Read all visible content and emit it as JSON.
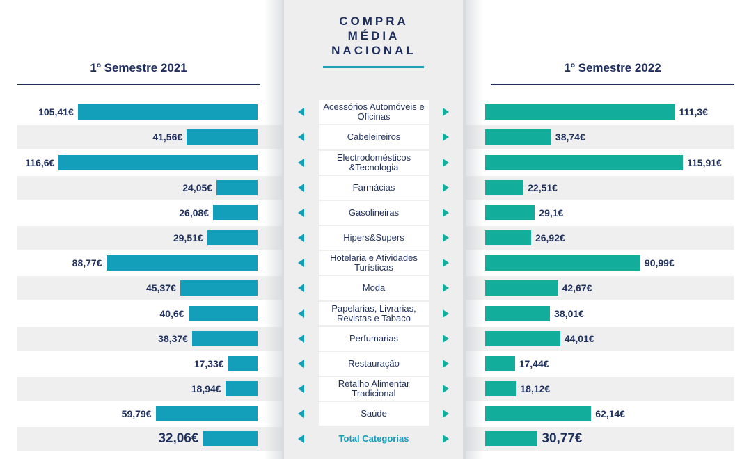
{
  "header": {
    "title_lines": [
      "COMPRA",
      "MÉDIA",
      "NACIONAL"
    ],
    "left_label": "1º Semestre 2021",
    "right_label": "1º Semestre 2022"
  },
  "colors": {
    "left_bar": "#139eb9",
    "right_bar": "#13ad9b",
    "text": "#1f2f5c",
    "stripe": "#efefef"
  },
  "chart_data": {
    "type": "bar",
    "orientation": "horizontal-butterfly",
    "currency_suffix": "€",
    "categories": [
      "Acessórios Automóveis e Oficinas",
      "Cabeleireiros",
      "Electrodomésticos &Tecnologia",
      "Farmácias",
      "Gasolineiras",
      "Hipers&Supers",
      "Hotelaria e Atividades Turísticas",
      "Moda",
      "Papelarias, Livrarias, Revistas e Tabaco",
      "Perfumarias",
      "Restauração",
      "Retalho Alimentar Tradicional",
      "Saúde",
      "Total Categorias"
    ],
    "series": [
      {
        "name": "1º Semestre 2021",
        "values": [
          105.41,
          41.56,
          116.6,
          24.05,
          26.08,
          29.51,
          88.77,
          45.37,
          40.6,
          38.37,
          17.33,
          18.94,
          59.79,
          32.06
        ],
        "labels": [
          "105,41€",
          "41,56€",
          "116,6€",
          "24,05€",
          "26,08€",
          "29,51€",
          "88,77€",
          "45,37€",
          "40,6€",
          "38,37€",
          "17,33€",
          "18,94€",
          "59,79€",
          "32,06€"
        ]
      },
      {
        "name": "1º Semestre 2022",
        "values": [
          111.3,
          38.74,
          115.91,
          22.51,
          29.1,
          26.92,
          90.99,
          42.67,
          38.01,
          44.01,
          17.44,
          18.12,
          62.14,
          30.77
        ],
        "labels": [
          "111,3€",
          "38,74€",
          "115,91€",
          "22,51€",
          "29,1€",
          "26,92€",
          "90,99€",
          "42,67€",
          "38,01€",
          "44,01€",
          "17,44€",
          "18,12€",
          "62,14€",
          "30,77€"
        ]
      }
    ]
  }
}
